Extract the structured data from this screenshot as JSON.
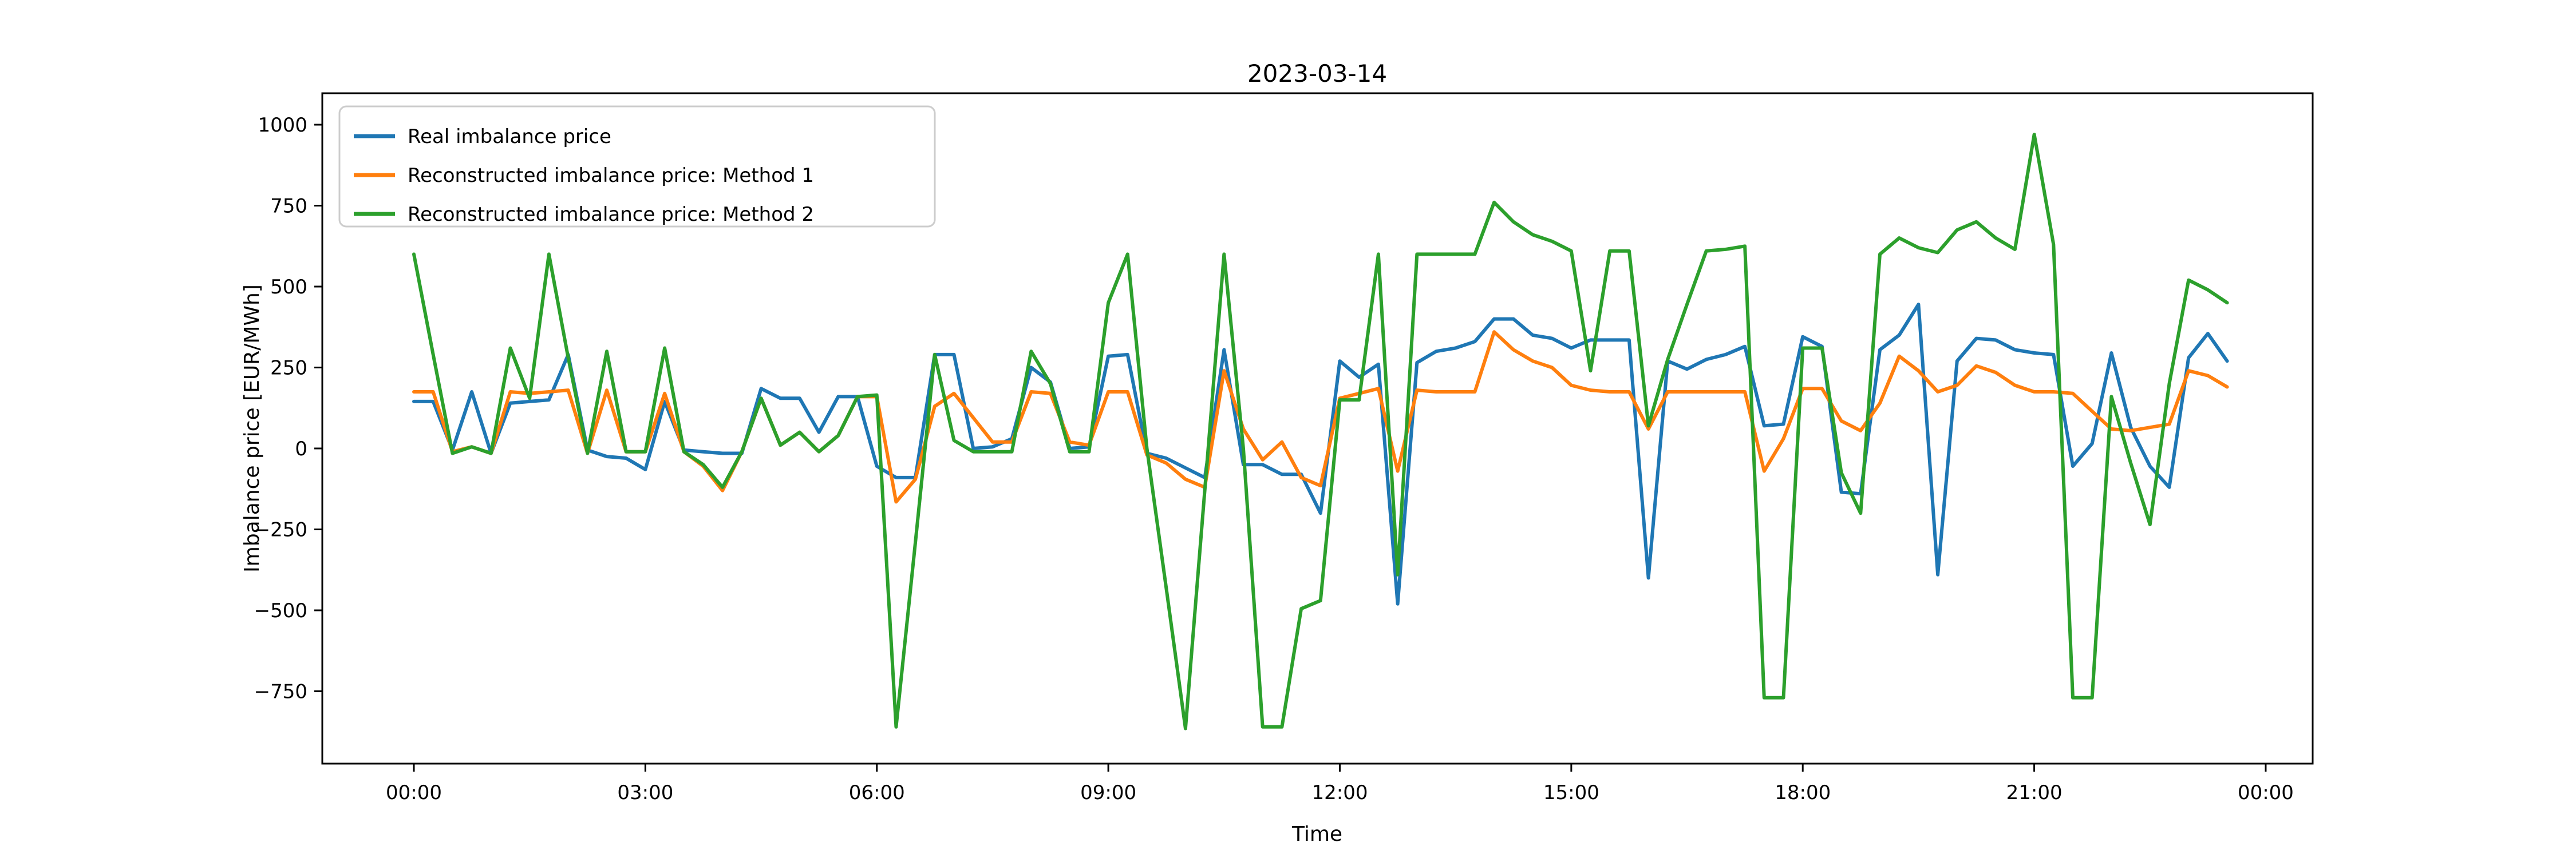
{
  "figure": {
    "title": "2023-03-14",
    "xlabel": "Time",
    "ylabel": "Imbalance price [EUR/MWh]"
  },
  "legend": {
    "position": "upper left",
    "entries": [
      {
        "label": "Real imbalance price",
        "color": "#1f77b4"
      },
      {
        "label": "Reconstructed imbalance price: Method 1",
        "color": "#ff7f0e"
      },
      {
        "label": "Reconstructed imbalance price: Method 2",
        "color": "#2ca02c"
      }
    ]
  },
  "chart_data": {
    "type": "line",
    "title": "2023-03-14",
    "xlabel": "Time",
    "ylabel": "Imbalance price [EUR/MWh]",
    "grid": false,
    "legend_position": "upper left",
    "x_tick_labels": [
      "00:00",
      "03:00",
      "06:00",
      "09:00",
      "12:00",
      "15:00",
      "18:00",
      "21:00",
      "00:00"
    ],
    "x_tick_hours": [
      0,
      3,
      6,
      9,
      12,
      15,
      18,
      21,
      24
    ],
    "y_tick_labels": [
      "1000",
      "750",
      "500",
      "250",
      "0",
      "−250",
      "−500",
      "−750"
    ],
    "y_tick_values": [
      1000,
      750,
      500,
      250,
      0,
      -250,
      -500,
      -750
    ],
    "ylim": [
      -975,
      1100
    ],
    "x_resolution_minutes": 15,
    "x_start": "00:00",
    "x_end": "23:30",
    "times": [
      "00:00",
      "00:15",
      "00:30",
      "00:45",
      "01:00",
      "01:15",
      "01:30",
      "01:45",
      "02:00",
      "02:15",
      "02:30",
      "02:45",
      "03:00",
      "03:15",
      "03:30",
      "03:45",
      "04:00",
      "04:15",
      "04:30",
      "04:45",
      "05:00",
      "05:15",
      "05:30",
      "05:45",
      "06:00",
      "06:15",
      "06:30",
      "06:45",
      "07:00",
      "07:15",
      "07:30",
      "07:45",
      "08:00",
      "08:15",
      "08:30",
      "08:45",
      "09:00",
      "09:15",
      "09:30",
      "09:45",
      "10:00",
      "10:15",
      "10:30",
      "10:45",
      "11:00",
      "11:15",
      "11:30",
      "11:45",
      "12:00",
      "12:15",
      "12:30",
      "12:45",
      "13:00",
      "13:15",
      "13:30",
      "13:45",
      "14:00",
      "14:15",
      "14:30",
      "14:45",
      "15:00",
      "15:15",
      "15:30",
      "15:45",
      "16:00",
      "16:15",
      "16:30",
      "16:45",
      "17:00",
      "17:15",
      "17:30",
      "17:45",
      "18:00",
      "18:15",
      "18:30",
      "18:45",
      "19:00",
      "19:15",
      "19:30",
      "19:45",
      "20:00",
      "20:15",
      "20:30",
      "20:45",
      "21:00",
      "21:15",
      "21:30",
      "21:45",
      "22:00",
      "22:15",
      "22:30",
      "22:45",
      "23:00",
      "23:15",
      "23:30"
    ],
    "series": [
      {
        "name": "Real imbalance price",
        "color": "#1f77b4",
        "values": [
          145,
          145,
          -5,
          175,
          -15,
          140,
          145,
          150,
          290,
          -5,
          -25,
          -30,
          -65,
          145,
          -5,
          -10,
          -15,
          -15,
          185,
          155,
          155,
          50,
          160,
          160,
          -55,
          -90,
          -90,
          290,
          290,
          0,
          5,
          30,
          250,
          205,
          0,
          5,
          285,
          290,
          -15,
          -30,
          -60,
          -90,
          305,
          -50,
          -50,
          -80,
          -80,
          -200,
          270,
          220,
          260,
          -480,
          265,
          300,
          310,
          330,
          400,
          400,
          350,
          340,
          310,
          335,
          335,
          335,
          -400,
          270,
          245,
          275,
          290,
          315,
          70,
          75,
          345,
          315,
          -135,
          -140,
          305,
          350,
          445,
          -390,
          270,
          340,
          335,
          305,
          295,
          290,
          -55,
          15,
          295,
          65,
          -55,
          -120,
          280,
          355,
          270
        ]
      },
      {
        "name": "Reconstructed imbalance price: Method 1",
        "color": "#ff7f0e",
        "values": [
          175,
          175,
          -10,
          5,
          -15,
          175,
          170,
          175,
          180,
          -15,
          180,
          -10,
          -10,
          170,
          -10,
          -55,
          -130,
          -10,
          155,
          10,
          50,
          -10,
          40,
          160,
          160,
          -165,
          -95,
          130,
          170,
          95,
          20,
          20,
          175,
          170,
          20,
          10,
          175,
          175,
          -20,
          -45,
          -95,
          -120,
          240,
          60,
          -35,
          20,
          -90,
          -115,
          155,
          170,
          185,
          -70,
          180,
          175,
          175,
          175,
          360,
          305,
          270,
          250,
          195,
          180,
          175,
          175,
          60,
          175,
          175,
          175,
          175,
          175,
          -70,
          30,
          185,
          185,
          85,
          55,
          140,
          285,
          240,
          175,
          195,
          255,
          235,
          195,
          175,
          175,
          170,
          115,
          60,
          55,
          65,
          75,
          240,
          225,
          190
        ]
      },
      {
        "name": "Reconstructed imbalance price: Method 2",
        "color": "#2ca02c",
        "values": [
          600,
          290,
          -15,
          5,
          -15,
          310,
          155,
          600,
          280,
          -15,
          300,
          -10,
          -10,
          310,
          -10,
          -50,
          -120,
          -10,
          155,
          10,
          50,
          -10,
          40,
          160,
          165,
          -860,
          -290,
          290,
          25,
          -10,
          -10,
          -10,
          300,
          200,
          -10,
          -10,
          450,
          600,
          0,
          -430,
          -865,
          -130,
          600,
          0,
          -860,
          -860,
          -495,
          -470,
          150,
          150,
          600,
          -390,
          600,
          600,
          600,
          600,
          760,
          700,
          660,
          640,
          610,
          240,
          610,
          610,
          70,
          275,
          445,
          610,
          615,
          625,
          -770,
          -770,
          310,
          310,
          -75,
          -200,
          600,
          650,
          620,
          605,
          675,
          700,
          650,
          615,
          970,
          630,
          -770,
          -770,
          160,
          -45,
          -235,
          200,
          520,
          490,
          450
        ]
      }
    ]
  }
}
